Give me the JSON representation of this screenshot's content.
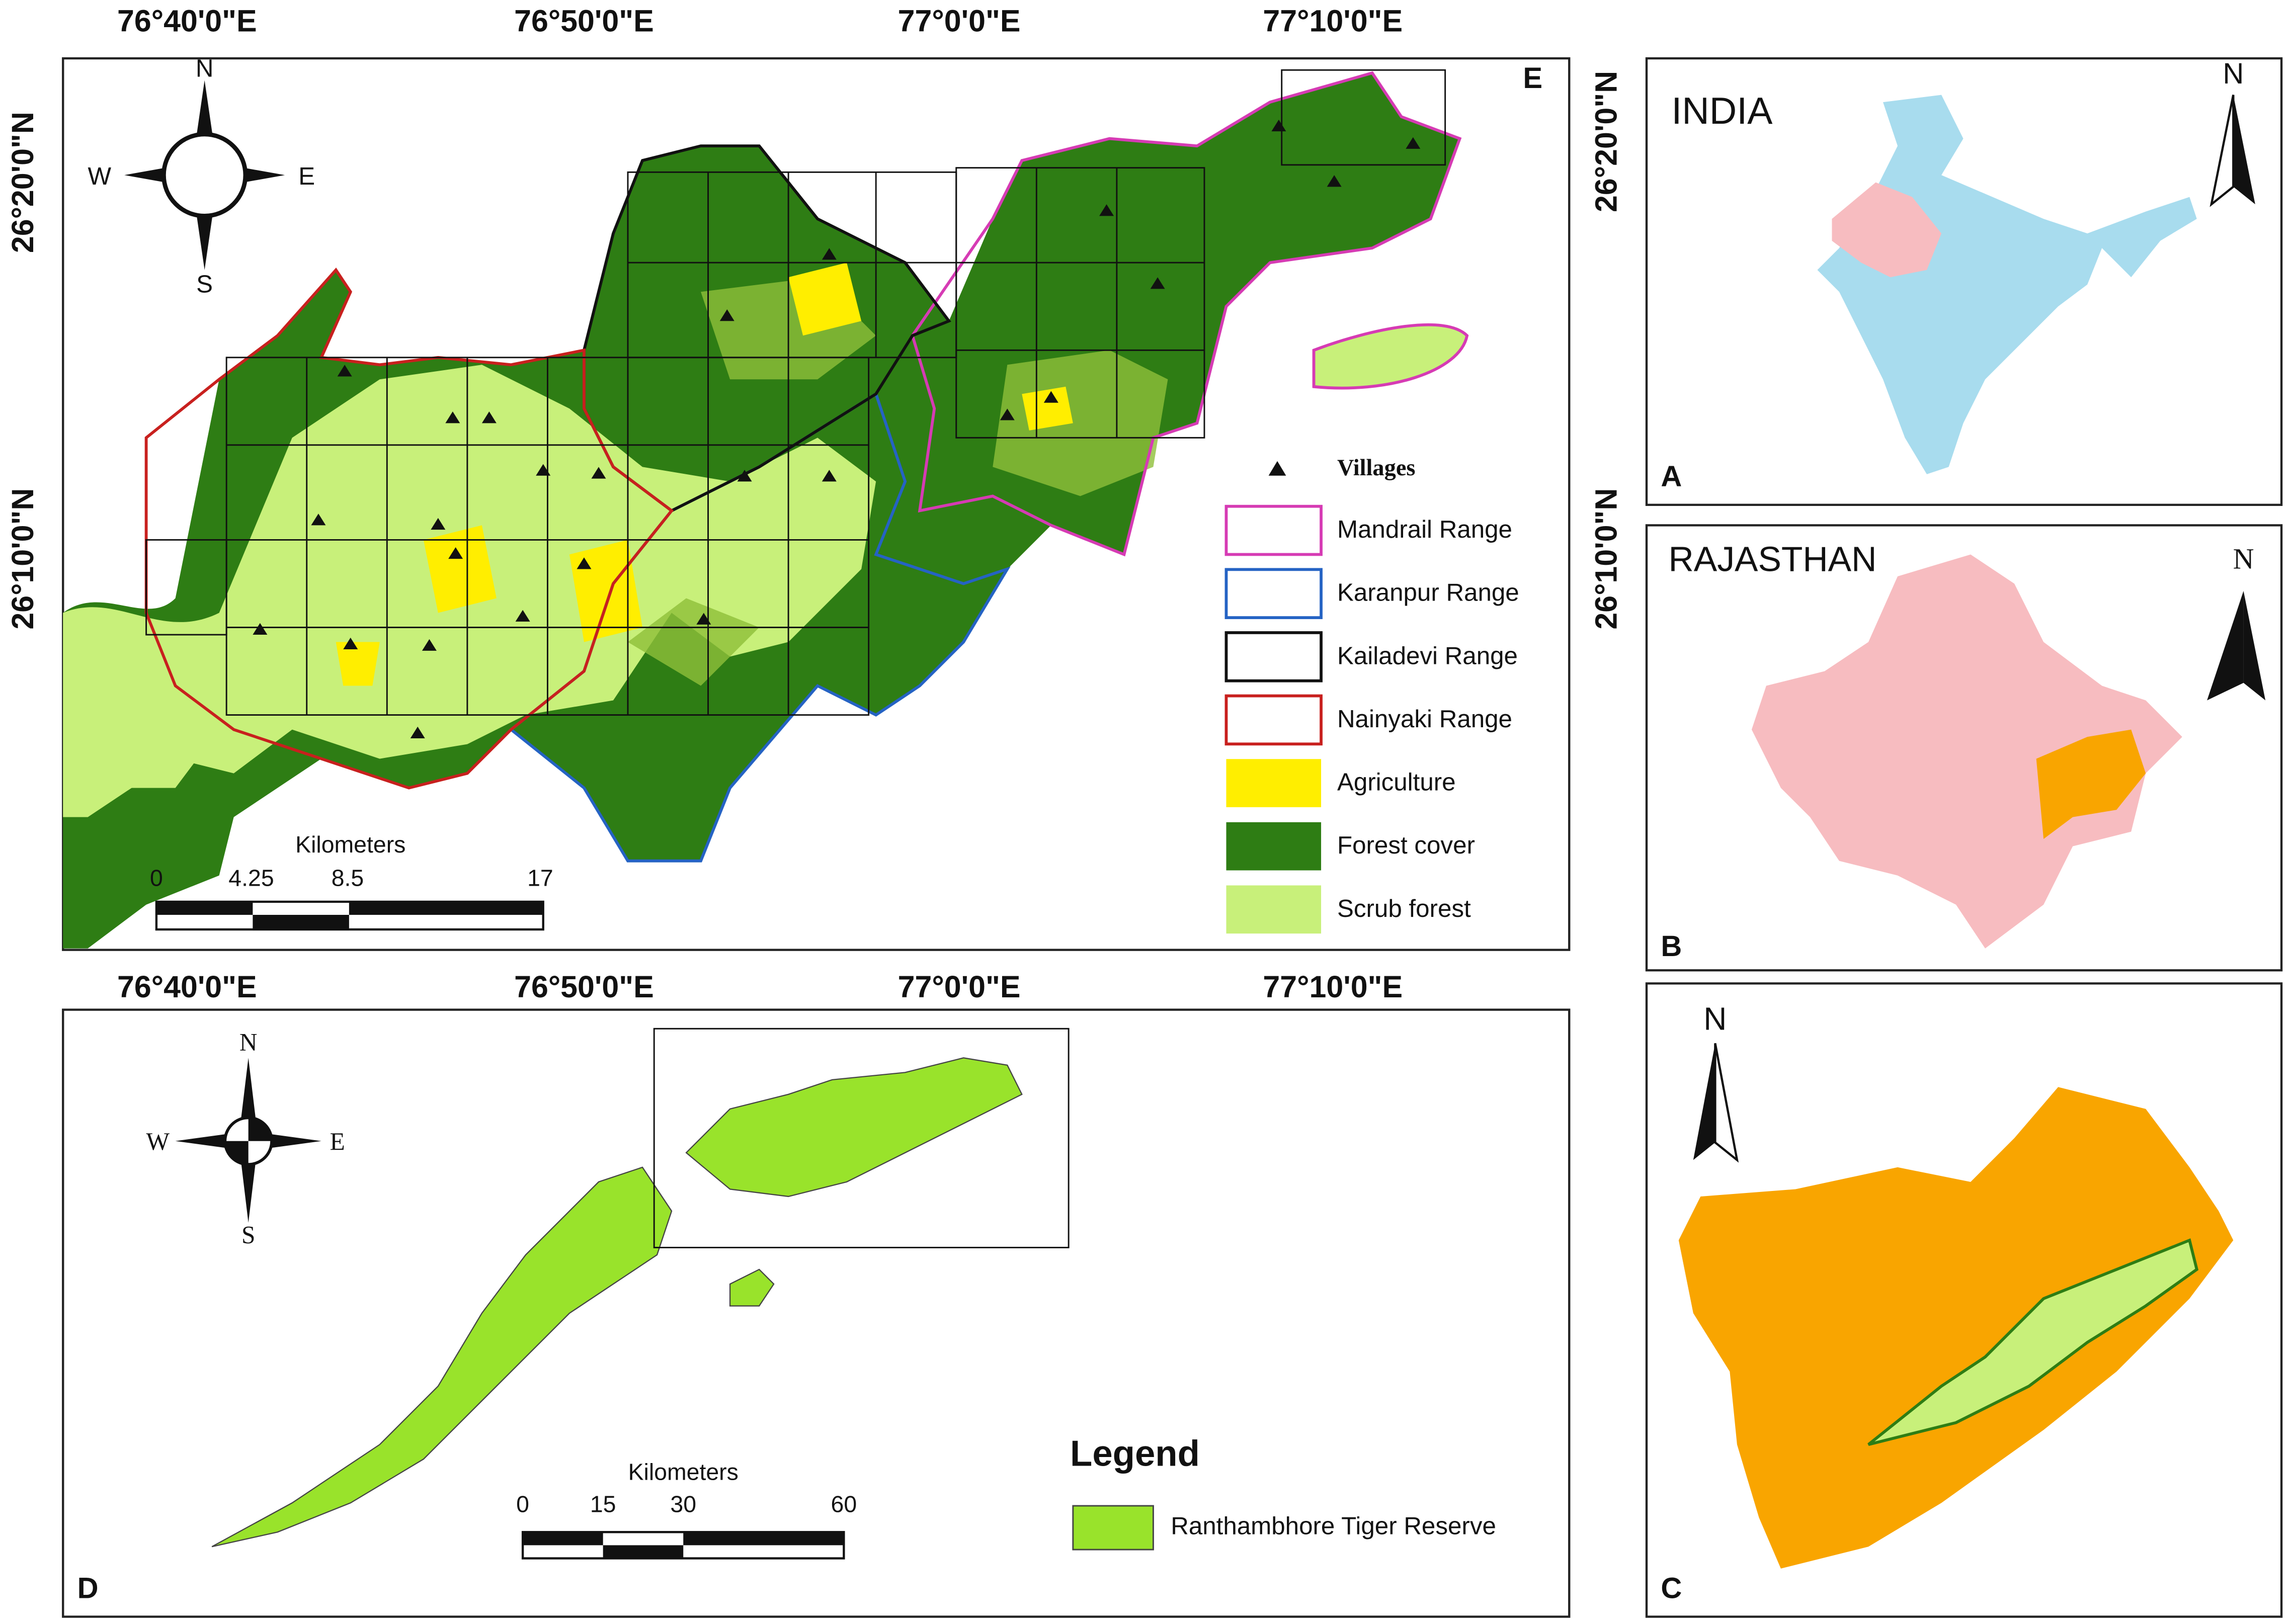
{
  "panel_e": {
    "letter": "E",
    "top_lon_labels": [
      "76°40'0\"E",
      "76°50'0\"E",
      "77°0'0\"E",
      "77°10'0\"E"
    ],
    "bottom_lon_labels": [
      "76°40'0\"E",
      "76°50'0\"E",
      "77°0'0\"E",
      "77°10'0\"E"
    ],
    "left_lat_labels": [
      "26°20'0\"N",
      "26°10'0\"N"
    ],
    "right_lat_labels": [
      "26°20'0\"N",
      "26°10'0\"N"
    ],
    "compass": {
      "n": "N",
      "w": "W",
      "e": "E",
      "s": "S"
    },
    "scale_title": "Kilometers",
    "scale_ticks": [
      "0",
      "4.25",
      "8.5",
      "17"
    ],
    "villages_label": "Villages",
    "legend": [
      "Mandrail Range",
      "Karanpur Range",
      "Kailadevi Range",
      "Nainyaki Range",
      "Agriculture",
      "Forest cover",
      "Scrub forest"
    ]
  },
  "panel_a": {
    "title": "INDIA",
    "north": "N",
    "letter": "A"
  },
  "panel_b": {
    "title": "RAJASTHAN",
    "north": "N",
    "letter": "B"
  },
  "panel_c": {
    "north": "N",
    "letter": "C"
  },
  "panel_d": {
    "letter": "D",
    "compass": {
      "n": "N",
      "w": "W",
      "e": "E",
      "s": "S"
    },
    "scale_title": "Kilometers",
    "scale_ticks": [
      "0",
      "15",
      "30",
      "60"
    ],
    "legend_title": "Legend",
    "legend_item": "Ranthambhore Tiger Reserve"
  }
}
